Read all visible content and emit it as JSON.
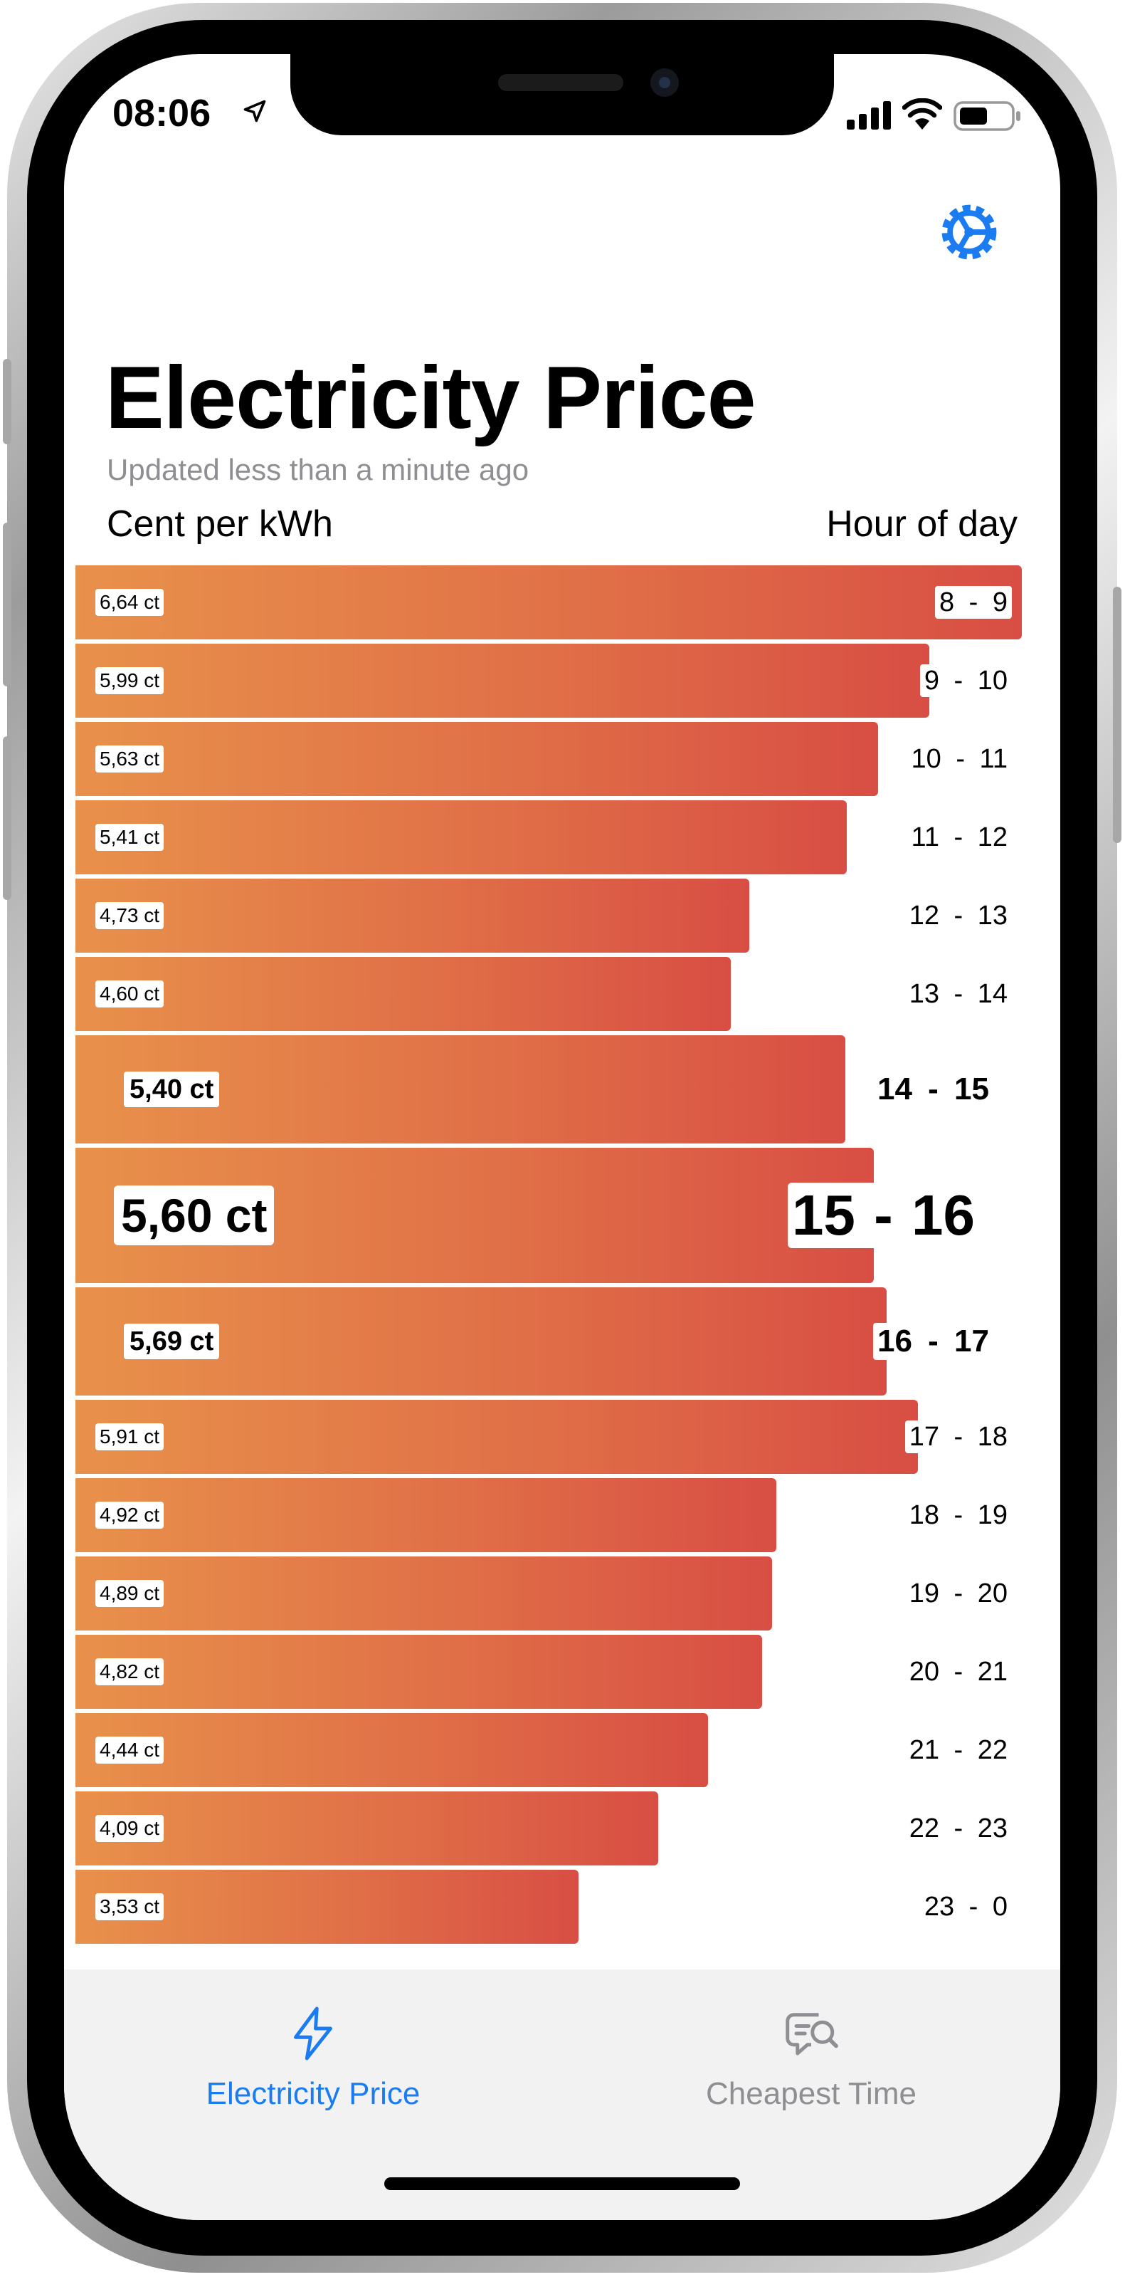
{
  "status_bar": {
    "time": "08:06"
  },
  "header": {
    "title": "Electricity Price",
    "updated": "Updated less than a minute ago",
    "y_axis_label": "Cent per kWh",
    "x_axis_label": "Hour of day"
  },
  "colors": {
    "accent": "#1a7cf0",
    "bar_start": "#e8914b",
    "bar_end": "#d84e44",
    "inactive": "#8e8e93"
  },
  "icons": {
    "settings": "gear-icon",
    "tab_price": "bolt-icon",
    "tab_cheapest": "message-search-icon"
  },
  "chart_data": {
    "type": "bar",
    "orientation": "horizontal",
    "unit": "ct",
    "max_value": 6.64,
    "bars": [
      {
        "hour": "8  -  9",
        "price": 6.64,
        "label": "6,64 ct"
      },
      {
        "hour": "9  -  10",
        "price": 5.99,
        "label": "5,99 ct"
      },
      {
        "hour": "10  -  11",
        "price": 5.63,
        "label": "5,63 ct"
      },
      {
        "hour": "11  -  12",
        "price": 5.41,
        "label": "5,41 ct"
      },
      {
        "hour": "12  -  13",
        "price": 4.73,
        "label": "4,73 ct"
      },
      {
        "hour": "13  -  14",
        "price": 4.6,
        "label": "4,60 ct"
      },
      {
        "hour": "14  -  15",
        "price": 5.4,
        "label": "5,40 ct"
      },
      {
        "hour": "15 - 16",
        "price": 5.6,
        "label": "5,60 ct"
      },
      {
        "hour": "16  -  17",
        "price": 5.69,
        "label": "5,69 ct"
      },
      {
        "hour": "17  -  18",
        "price": 5.91,
        "label": "5,91 ct"
      },
      {
        "hour": "18  -  19",
        "price": 4.92,
        "label": "4,92 ct"
      },
      {
        "hour": "19  -  20",
        "price": 4.89,
        "label": "4,89 ct"
      },
      {
        "hour": "20  -  21",
        "price": 4.82,
        "label": "4,82 ct"
      },
      {
        "hour": "21  -  22",
        "price": 4.44,
        "label": "4,44 ct"
      },
      {
        "hour": "22  -  23",
        "price": 4.09,
        "label": "4,09 ct"
      },
      {
        "hour": "23  -  0",
        "price": 3.53,
        "label": "3,53 ct"
      }
    ]
  },
  "tabs": [
    {
      "label": "Electricity Price",
      "active": true
    },
    {
      "label": "Cheapest Time",
      "active": false
    }
  ]
}
